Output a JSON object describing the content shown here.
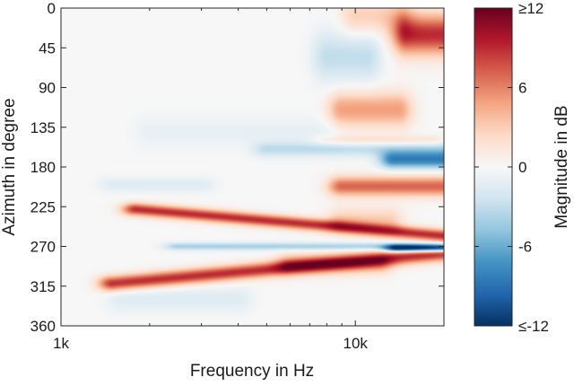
{
  "chart_data": {
    "type": "heatmap",
    "xlabel": "Frequency in Hz",
    "ylabel": "Azimuth in degree",
    "x_scale": "log",
    "xlim": [
      1000,
      20000
    ],
    "x_ticks": [
      1000,
      10000
    ],
    "x_tick_labels": [
      "1k",
      "10k"
    ],
    "ylim": [
      0,
      360
    ],
    "y_reversed": true,
    "y_ticks": [
      0,
      45,
      90,
      135,
      180,
      225,
      270,
      315,
      360
    ],
    "y_tick_labels": [
      "0",
      "45",
      "90",
      "135",
      "180",
      "225",
      "270",
      "315",
      "360"
    ],
    "colorbar": {
      "label": "Magnitude in dB",
      "range": [
        -12,
        12
      ],
      "ticks": [
        12,
        6,
        0,
        -6,
        -12
      ],
      "tick_labels": [
        "≥12",
        "6",
        "0",
        "-6",
        "≤-12"
      ],
      "colormap": [
        "#053061",
        "#2166ac",
        "#4393c3",
        "#92c5de",
        "#d1e5f0",
        "#f7f7f7",
        "#fddbc7",
        "#f4a582",
        "#d6604d",
        "#b2182b",
        "#67001f"
      ]
    },
    "features": [
      {
        "f": [
          1800,
          20000
        ],
        "az_start": 228,
        "az_end": 258,
        "width": 5,
        "value": 9
      },
      {
        "f": [
          1500,
          20000
        ],
        "az_start": 312,
        "az_end": 278,
        "width": 6,
        "value": 9
      },
      {
        "f": [
          6000,
          12000
        ],
        "az": 290,
        "width": 8,
        "value": 4
      },
      {
        "f": [
          2500,
          20000
        ],
        "az": 270,
        "width": 3,
        "value": -4
      },
      {
        "f": [
          14000,
          20000
        ],
        "az": 272,
        "width": 3,
        "value": -12
      },
      {
        "f": [
          9000,
          14000
        ],
        "az": 115,
        "width": 14,
        "value": 5
      },
      {
        "f": [
          8000,
          18000
        ],
        "az": 150,
        "width": 4,
        "value": 2
      },
      {
        "f": [
          5000,
          20000
        ],
        "az": 160,
        "width": 6,
        "value": -3
      },
      {
        "f": [
          13500,
          20000
        ],
        "az": 172,
        "width": 7,
        "value": -8
      },
      {
        "f": [
          9000,
          20000
        ],
        "az": 202,
        "width": 8,
        "value": 7
      },
      {
        "f": [
          15000,
          20000
        ],
        "az": 30,
        "width": 16,
        "value": 9
      },
      {
        "f": [
          8000,
          11000
        ],
        "az": 55,
        "width": 20,
        "value": -3
      },
      {
        "f": [
          10000,
          14000
        ],
        "az": 10,
        "width": 15,
        "value": 3
      },
      {
        "f": [
          9000,
          13000
        ],
        "az": 240,
        "width": 10,
        "value": 3
      },
      {
        "f": [
          1600,
          4000
        ],
        "az": 330,
        "width": 10,
        "value": -1.5
      },
      {
        "f": [
          2000,
          8000
        ],
        "az": 140,
        "width": 12,
        "value": -1
      },
      {
        "f": [
          1500,
          3000
        ],
        "az": 200,
        "width": 6,
        "value": -1.5
      }
    ]
  }
}
